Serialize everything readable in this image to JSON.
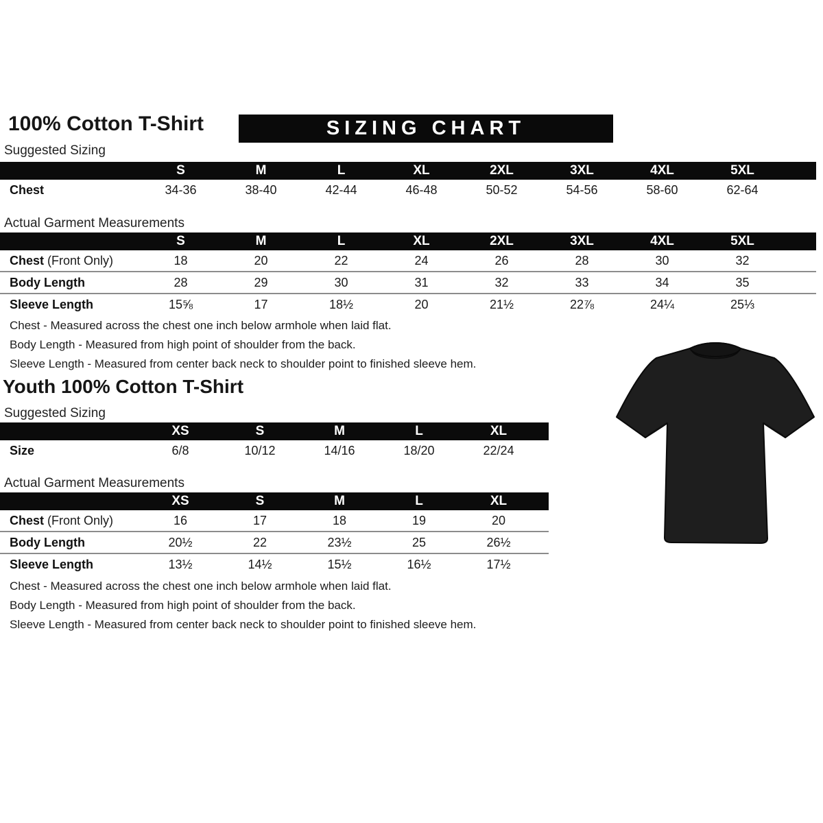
{
  "adult": {
    "title": "100% Cotton T-Shirt",
    "banner": "SIZING CHART",
    "suggested_label": "Suggested Sizing",
    "suggested": {
      "sizes": [
        "S",
        "M",
        "L",
        "XL",
        "2XL",
        "3XL",
        "4XL",
        "5XL"
      ],
      "rows": [
        {
          "label": "Chest",
          "suffix": "",
          "values": [
            "34-36",
            "38-40",
            "42-44",
            "46-48",
            "50-52",
            "54-56",
            "58-60",
            "62-64"
          ]
        }
      ]
    },
    "actual_label": "Actual Garment Measurements",
    "actual": {
      "sizes": [
        "S",
        "M",
        "L",
        "XL",
        "2XL",
        "3XL",
        "4XL",
        "5XL"
      ],
      "rows": [
        {
          "label": "Chest",
          "suffix": "(Front Only)",
          "values": [
            "18",
            "20",
            "22",
            "24",
            "26",
            "28",
            "30",
            "32"
          ]
        },
        {
          "label": "Body Length",
          "suffix": "",
          "values": [
            "28",
            "29",
            "30",
            "31",
            "32",
            "33",
            "34",
            "35"
          ]
        },
        {
          "label": "Sleeve Length",
          "suffix": "",
          "values": [
            "15⅝",
            "17",
            "18½",
            "20",
            "21½",
            "22⅞",
            "24¼",
            "25⅓"
          ]
        }
      ]
    },
    "notes": [
      "Chest - Measured across the chest one inch below armhole when laid flat.",
      "Body Length - Measured from high point of shoulder from the back.",
      "Sleeve Length - Measured from center back neck to shoulder point to finished sleeve hem."
    ]
  },
  "youth": {
    "title": "Youth 100% Cotton T-Shirt",
    "suggested_label": "Suggested Sizing",
    "suggested": {
      "sizes": [
        "XS",
        "S",
        "M",
        "L",
        "XL"
      ],
      "rows": [
        {
          "label": "Size",
          "suffix": "",
          "values": [
            "6/8",
            "10/12",
            "14/16",
            "18/20",
            "22/24"
          ]
        }
      ]
    },
    "actual_label": "Actual Garment Measurements",
    "actual": {
      "sizes": [
        "XS",
        "S",
        "M",
        "L",
        "XL"
      ],
      "rows": [
        {
          "label": "Chest",
          "suffix": "(Front Only)",
          "values": [
            "16",
            "17",
            "18",
            "19",
            "20"
          ]
        },
        {
          "label": "Body Length",
          "suffix": "",
          "values": [
            "20½",
            "22",
            "23½",
            "25",
            "26½"
          ]
        },
        {
          "label": "Sleeve Length",
          "suffix": "",
          "values": [
            "13½",
            "14½",
            "15½",
            "16½",
            "17½"
          ]
        }
      ]
    },
    "notes": [
      "Chest - Measured across the chest one inch below armhole when laid flat.",
      "Body Length - Measured from high point of shoulder from the back.",
      "Sleeve Length - Measured from center back neck to shoulder point to finished sleeve hem."
    ]
  },
  "tshirt": {
    "description": "black short-sleeve crew-neck t-shirt",
    "fill_color": "#1e1e1e",
    "collar_color": "#141414",
    "outline_color": "#0a0a0a"
  }
}
